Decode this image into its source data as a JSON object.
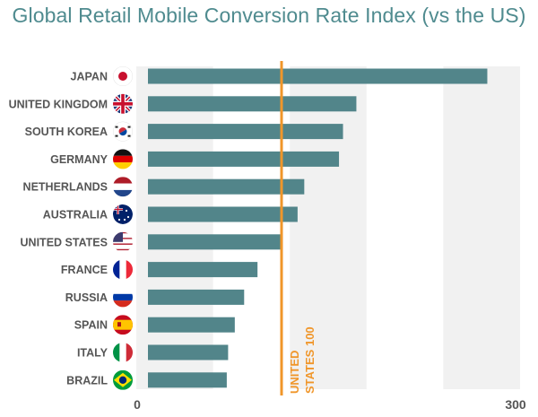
{
  "chart_data": {
    "type": "bar",
    "orientation": "horizontal",
    "title": "Global Retail Mobile Conversion Rate Index (vs the US)",
    "xlabel": "",
    "ylabel": "",
    "xlim": [
      0,
      300
    ],
    "x_ticks": [
      "0",
      "300"
    ],
    "grid": "alternating vertical bands",
    "categories": [
      "JAPAN",
      "UNITED KINGDOM",
      "SOUTH KOREA",
      "GERMANY",
      "NETHERLANDS",
      "AUSTRALIA",
      "UNITED STATES",
      "FRANCE",
      "RUSSIA",
      "SPAIN",
      "ITALY",
      "BRAZIL"
    ],
    "flags": [
      "japan-flag",
      "uk-flag",
      "south-korea-flag",
      "germany-flag",
      "netherlands-flag",
      "australia-flag",
      "usa-flag",
      "france-flag",
      "russia-flag",
      "spain-flag",
      "italy-flag",
      "brazil-flag"
    ],
    "values": [
      254,
      156,
      146,
      143,
      117,
      112,
      100,
      82,
      72,
      65,
      60,
      59
    ],
    "reference_line": {
      "value": 100,
      "label_line1": "UNITED",
      "label_line2": "STATES 100"
    },
    "colors": {
      "bar": "#52858a",
      "reference": "#f0962a",
      "band": "#f1f1f1",
      "title": "#4f8b8f",
      "label": "#555555"
    }
  }
}
